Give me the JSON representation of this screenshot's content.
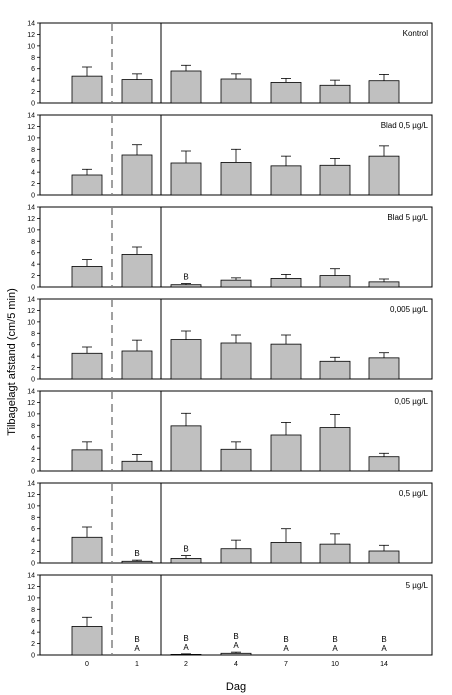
{
  "chart_data": {
    "type": "bar",
    "xlabel": "Dag",
    "ylabel": "Tilbagelagt afstand (cm/5 min)",
    "categories": [
      "0",
      "1",
      "2",
      "4",
      "7",
      "10",
      "14"
    ],
    "ylim": [
      0,
      14
    ],
    "yticks": [
      "0",
      "2",
      "4",
      "6",
      "8",
      "10",
      "12",
      "14"
    ],
    "bar_color": "#c0c0c0",
    "panels": [
      {
        "name": "Kontrol",
        "values": [
          4.7,
          4.1,
          5.6,
          4.2,
          3.6,
          3.1,
          3.9
        ],
        "errors": [
          1.6,
          1.0,
          1.0,
          0.9,
          0.7,
          0.9,
          1.1
        ],
        "annotations": [
          "",
          "",
          "",
          "",
          "",
          "",
          ""
        ]
      },
      {
        "name": "Blad 0,5 µg/L",
        "values": [
          3.5,
          7.0,
          5.6,
          5.7,
          5.1,
          5.2,
          6.8
        ],
        "errors": [
          1.0,
          1.8,
          2.1,
          2.3,
          1.7,
          1.2,
          1.8
        ],
        "annotations": [
          "",
          "",
          "",
          "",
          "",
          "",
          ""
        ]
      },
      {
        "name": "Blad 5 µg/L",
        "values": [
          3.6,
          5.7,
          0.4,
          1.2,
          1.5,
          2.0,
          0.9
        ],
        "errors": [
          1.2,
          1.3,
          0.2,
          0.4,
          0.7,
          1.2,
          0.5
        ],
        "annotations": [
          "",
          "",
          "B",
          "",
          "",
          "",
          ""
        ]
      },
      {
        "name": "0,005 µg/L",
        "values": [
          4.5,
          4.9,
          6.9,
          6.3,
          6.1,
          3.1,
          3.7
        ],
        "errors": [
          1.1,
          1.9,
          1.5,
          1.4,
          1.6,
          0.7,
          0.9
        ],
        "annotations": [
          "",
          "",
          "",
          "",
          "",
          "",
          ""
        ]
      },
      {
        "name": "0,05 µg/L",
        "values": [
          3.7,
          1.7,
          7.9,
          3.8,
          6.3,
          7.6,
          2.5
        ],
        "errors": [
          1.4,
          1.2,
          2.2,
          1.3,
          2.2,
          2.3,
          0.6
        ],
        "annotations": [
          "",
          "",
          "",
          "",
          "",
          "",
          ""
        ]
      },
      {
        "name": "0,5 µg/L",
        "values": [
          4.5,
          0.3,
          0.8,
          2.5,
          3.6,
          3.3,
          2.1
        ],
        "errors": [
          1.8,
          0.2,
          0.5,
          1.5,
          2.4,
          1.8,
          1.0
        ],
        "annotations": [
          "",
          "B",
          "B",
          "",
          "",
          "",
          ""
        ]
      },
      {
        "name": "5 µg/L",
        "values": [
          5.0,
          0.0,
          0.1,
          0.3,
          0.0,
          0.0,
          0.0
        ],
        "errors": [
          1.6,
          0.0,
          0.1,
          0.2,
          0.0,
          0.0,
          0.0
        ],
        "annotations": [
          "",
          "B\nA",
          "B\nA",
          "B\nA",
          "B\nA",
          "B\nA",
          "B\nA"
        ]
      }
    ]
  }
}
